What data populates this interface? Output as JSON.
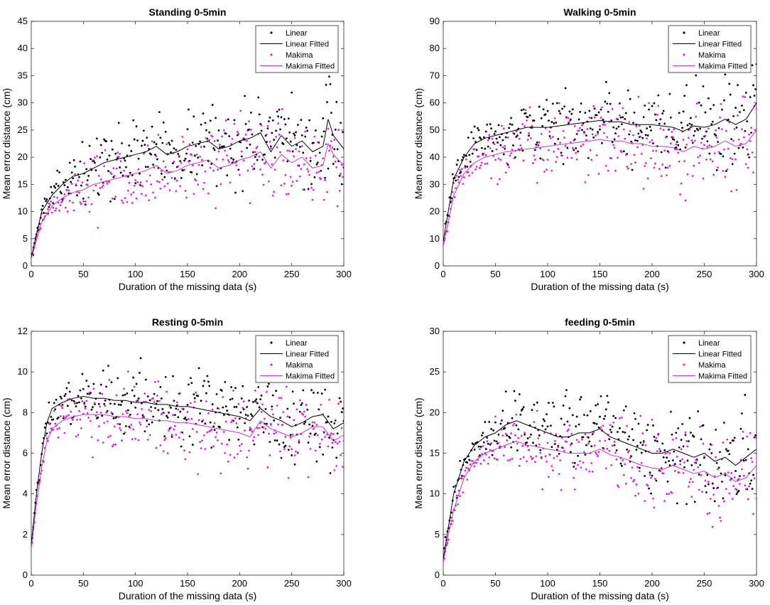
{
  "chart_data": [
    {
      "type": "scatter",
      "title": "Standing 0-5min",
      "xlabel": "Duration of the missing data (s)",
      "ylabel": "Mean error distance (cm)",
      "xlim": [
        0,
        300
      ],
      "ylim": [
        0,
        45
      ],
      "xticks": [
        0,
        50,
        100,
        150,
        200,
        250,
        300
      ],
      "yticks": [
        0,
        5,
        10,
        15,
        20,
        25,
        30,
        35,
        40,
        45
      ],
      "legend_position": "top-right",
      "legend": [
        "Linear",
        "Linear Fitted",
        "Makima",
        "Makima Fitted"
      ],
      "series": [
        {
          "name": "Linear Fitted",
          "x": [
            0,
            10,
            20,
            30,
            40,
            50,
            60,
            70,
            80,
            90,
            100,
            110,
            120,
            130,
            140,
            150,
            160,
            170,
            180,
            190,
            200,
            210,
            220,
            230,
            240,
            250,
            260,
            270,
            280,
            285,
            290,
            300
          ],
          "y": [
            1.5,
            10,
            13,
            15,
            16.5,
            17,
            18,
            19,
            19.5,
            20,
            20.5,
            21,
            22,
            20.5,
            21,
            22,
            22.5,
            23,
            21.5,
            22,
            23,
            23.5,
            24.5,
            21,
            24,
            22,
            23,
            21,
            22,
            27,
            24,
            21.5
          ]
        },
        {
          "name": "Makima Fitted",
          "x": [
            0,
            10,
            20,
            30,
            40,
            50,
            60,
            70,
            80,
            90,
            100,
            110,
            120,
            130,
            140,
            150,
            160,
            170,
            180,
            190,
            200,
            210,
            220,
            230,
            240,
            250,
            260,
            270,
            280,
            285,
            290,
            300
          ],
          "y": [
            1.3,
            8,
            11,
            12.5,
            13.5,
            14,
            15,
            15.5,
            16,
            16.5,
            17,
            17.5,
            18.5,
            17,
            17.5,
            18.5,
            19,
            19.5,
            18,
            18.5,
            19.5,
            20,
            21,
            18,
            20.5,
            19,
            20,
            18,
            18.5,
            22.5,
            20.5,
            18.5
          ]
        }
      ]
    },
    {
      "type": "scatter",
      "title": "Walking 0-5min",
      "xlabel": "Duration of the missing data (s)",
      "ylabel": "Mean error distance (cm)",
      "xlim": [
        0,
        300
      ],
      "ylim": [
        0,
        90
      ],
      "xticks": [
        0,
        50,
        100,
        150,
        200,
        250,
        300
      ],
      "yticks": [
        0,
        10,
        20,
        30,
        40,
        50,
        60,
        70,
        80,
        90
      ],
      "legend_position": "top-right",
      "legend": [
        "Linear",
        "Linear Fitted",
        "Makima",
        "Makima Fitted"
      ],
      "series": [
        {
          "name": "Linear Fitted",
          "x": [
            0,
            10,
            20,
            30,
            40,
            50,
            60,
            70,
            80,
            90,
            100,
            110,
            120,
            130,
            140,
            150,
            160,
            170,
            180,
            190,
            200,
            210,
            220,
            230,
            240,
            250,
            260,
            270,
            280,
            290,
            300
          ],
          "y": [
            9,
            32,
            40,
            45,
            47,
            48,
            49,
            50,
            51,
            51,
            51,
            51.5,
            52,
            52.5,
            53,
            53.5,
            53,
            53,
            52,
            52,
            52,
            51.5,
            51,
            49.5,
            51.5,
            51,
            52,
            54,
            52,
            54,
            60
          ]
        },
        {
          "name": "Makima Fitted",
          "x": [
            0,
            10,
            20,
            30,
            40,
            50,
            60,
            70,
            80,
            90,
            100,
            110,
            120,
            130,
            140,
            150,
            160,
            170,
            180,
            190,
            200,
            210,
            220,
            230,
            240,
            250,
            260,
            270,
            280,
            290,
            300
          ],
          "y": [
            7,
            26,
            34,
            38,
            40,
            41,
            42,
            42.5,
            43,
            43.5,
            44,
            44.5,
            45,
            45.5,
            46,
            46.5,
            46,
            46,
            45,
            45,
            44,
            44,
            43.5,
            42,
            44,
            43,
            44,
            46,
            44,
            45,
            50
          ]
        }
      ]
    },
    {
      "type": "scatter",
      "title": "Resting 0-5min",
      "xlabel": "Duration of the missing data (s)",
      "ylabel": "Mean error distance (cm)",
      "xlim": [
        0,
        300
      ],
      "ylim": [
        0,
        12
      ],
      "xticks": [
        0,
        50,
        100,
        150,
        200,
        250,
        300
      ],
      "yticks": [
        0,
        2,
        4,
        6,
        8,
        10,
        12
      ],
      "legend_position": "top-right",
      "legend": [
        "Linear",
        "Linear Fitted",
        "Makima",
        "Makima Fitted"
      ],
      "series": [
        {
          "name": "Linear Fitted",
          "x": [
            0,
            5,
            10,
            15,
            20,
            30,
            40,
            50,
            60,
            70,
            80,
            90,
            100,
            110,
            120,
            130,
            140,
            150,
            160,
            170,
            180,
            190,
            200,
            210,
            220,
            230,
            240,
            250,
            260,
            270,
            280,
            290,
            300
          ],
          "y": [
            1.5,
            4,
            6,
            7.5,
            8.2,
            8.5,
            8.7,
            8.8,
            8.7,
            8.7,
            8.6,
            8.6,
            8.5,
            8.5,
            8.4,
            8.4,
            8.3,
            8.3,
            8.2,
            8.1,
            8.0,
            7.9,
            7.8,
            7.6,
            8.2,
            7.8,
            7.6,
            7.3,
            7.5,
            7.8,
            7.9,
            7.2,
            7.5
          ]
        },
        {
          "name": "Makima Fitted",
          "x": [
            0,
            5,
            10,
            15,
            20,
            30,
            40,
            50,
            60,
            70,
            80,
            90,
            100,
            110,
            120,
            130,
            140,
            150,
            160,
            170,
            180,
            190,
            200,
            210,
            220,
            230,
            240,
            250,
            260,
            270,
            280,
            290,
            300
          ],
          "y": [
            1.3,
            3.5,
            5.3,
            6.6,
            7.2,
            7.6,
            7.8,
            7.9,
            7.9,
            7.9,
            7.8,
            7.8,
            7.7,
            7.7,
            7.6,
            7.6,
            7.5,
            7.5,
            7.4,
            7.3,
            7.2,
            7.1,
            7.0,
            6.8,
            7.6,
            7.2,
            7.0,
            6.8,
            7.0,
            7.3,
            7.3,
            6.6,
            6.9
          ]
        }
      ]
    },
    {
      "type": "scatter",
      "title": "feeding 0-5min",
      "xlabel": "Duration of the missing data (s)",
      "ylabel": "Mean error distance (cm)",
      "xlim": [
        0,
        300
      ],
      "ylim": [
        0,
        30
      ],
      "xticks": [
        0,
        50,
        100,
        150,
        200,
        250,
        300
      ],
      "yticks": [
        0,
        5,
        10,
        15,
        20,
        25,
        30
      ],
      "legend_position": "top-right",
      "legend": [
        "Linear",
        "Linear Fitted",
        "Makima",
        "Makima Fitted"
      ],
      "series": [
        {
          "name": "Linear Fitted",
          "x": [
            0,
            5,
            10,
            20,
            30,
            40,
            50,
            60,
            70,
            80,
            90,
            100,
            110,
            120,
            130,
            140,
            150,
            160,
            170,
            180,
            190,
            200,
            210,
            220,
            230,
            240,
            250,
            260,
            270,
            280,
            290,
            300
          ],
          "y": [
            2,
            6,
            10,
            14,
            16,
            17,
            17.5,
            18.5,
            19,
            18.5,
            18,
            17.5,
            17,
            17,
            17.5,
            17.5,
            18,
            17,
            16.5,
            16,
            15.5,
            15,
            15,
            15.5,
            15,
            14.5,
            15,
            14,
            14.5,
            13.5,
            14.5,
            15.5
          ]
        },
        {
          "name": "Makima Fitted",
          "x": [
            0,
            5,
            10,
            20,
            30,
            40,
            50,
            60,
            70,
            80,
            90,
            100,
            110,
            120,
            130,
            140,
            150,
            160,
            170,
            180,
            190,
            200,
            210,
            220,
            230,
            240,
            250,
            260,
            270,
            280,
            290,
            300
          ],
          "y": [
            1.5,
            5,
            8,
            12,
            14,
            15,
            15.5,
            16,
            16.5,
            16,
            15.8,
            15.5,
            15.3,
            15,
            15,
            15,
            15.5,
            14.8,
            14.5,
            14,
            13.5,
            13.2,
            13,
            13.5,
            13,
            12.5,
            12.8,
            12,
            12.5,
            11.5,
            12,
            13.5
          ]
        }
      ]
    }
  ]
}
